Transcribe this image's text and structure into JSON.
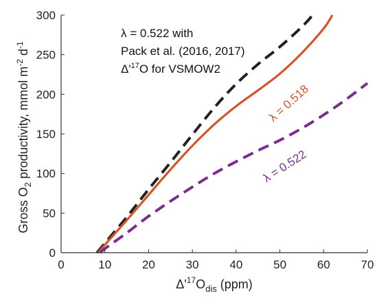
{
  "chart_data": {
    "type": "line",
    "title": "",
    "xlabel": {
      "prefix": "Δ'",
      "sup": "17",
      "mid": "O",
      "sub": "dis",
      "suffix": " (ppm)"
    },
    "ylabel": {
      "p1": "Gross O",
      "sub": "2",
      "p2": " productivity, mmol m",
      "sup1": "-2",
      "p3": " d",
      "sup2": "-1"
    },
    "xlim": [
      0,
      70
    ],
    "ylim": [
      0,
      300
    ],
    "xticks": [
      "0",
      "10",
      "20",
      "30",
      "40",
      "50",
      "60",
      "70"
    ],
    "yticks": [
      "0",
      "50",
      "100",
      "150",
      "200",
      "250",
      "300"
    ],
    "grid": false,
    "annotation": {
      "line1": "λ = 0.522 with",
      "line2": "Pack et al. (2016, 2017)",
      "line3_prefix": "Δ'",
      "line3_sup": "17",
      "line3_suffix": "O for VSMOW2"
    },
    "series": [
      {
        "label": "",
        "color": "#222222",
        "style": "dashed",
        "x": [
          8.2,
          10,
          15,
          20,
          25,
          30,
          35,
          40,
          45,
          50,
          55,
          57.5
        ],
        "y": [
          0,
          12,
          45,
          80,
          114,
          149,
          183,
          213,
          238,
          260,
          285,
          300
        ]
      },
      {
        "label": "λ = 0.518",
        "color": "#d35426",
        "style": "solid",
        "x": [
          8.5,
          10,
          15,
          20,
          25,
          30,
          35,
          40,
          45,
          50,
          55,
          60,
          62
        ],
        "y": [
          0,
          10,
          41,
          73,
          105,
          135,
          162,
          185,
          205,
          226,
          252,
          283,
          300
        ]
      },
      {
        "label": "λ = 0.522",
        "color": "#7b2d8e",
        "style": "dashed",
        "x": [
          9,
          10,
          15,
          20,
          25,
          30,
          35,
          40,
          45,
          50,
          55,
          60,
          65,
          70
        ],
        "y": [
          0,
          5,
          25,
          46,
          65,
          83,
          100,
          115,
          129,
          142,
          157,
          174,
          193,
          214
        ]
      }
    ]
  }
}
